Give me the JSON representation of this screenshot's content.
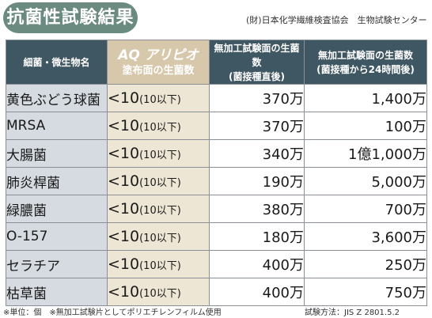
{
  "title": "抗菌性試験結果",
  "organization": "(財)日本化学繊維検査協会　生物試験センター",
  "table": {
    "headers": {
      "name": "細菌・微生物名",
      "aq_product": "AQ アリピオ",
      "aq_desc": "塗布面の生菌数",
      "ctrl_start_title": "無加工試験面の生菌数",
      "ctrl_start_sub": "(菌接種直後)",
      "ctrl_24h_title": "無加工試験面の生菌数",
      "ctrl_24h_sub": "(菌接種から24時間後)"
    },
    "rows": [
      {
        "name": "黄色ぶどう球菌",
        "aq_value": "<10",
        "aq_note": "(10以下)",
        "start": "370万",
        "after_24h": "1,400万"
      },
      {
        "name": "MRSA",
        "aq_value": "<10",
        "aq_note": "(10以下)",
        "start": "370万",
        "after_24h": "100万"
      },
      {
        "name": "大腸菌",
        "aq_value": "<10",
        "aq_note": "(10以下)",
        "start": "340万",
        "after_24h": "1億1,000万"
      },
      {
        "name": "肺炎桿菌",
        "aq_value": "<10",
        "aq_note": "(10以下)",
        "start": "190万",
        "after_24h": "5,000万"
      },
      {
        "name": "緑膿菌",
        "aq_value": "<10",
        "aq_note": "(10以下)",
        "start": "380万",
        "after_24h": "700万"
      },
      {
        "name": "O-157",
        "aq_value": "<10",
        "aq_note": "(10以下)",
        "start": "180万",
        "after_24h": "3,600万"
      },
      {
        "name": "セラチア",
        "aq_value": "<10",
        "aq_note": "(10以下)",
        "start": "400万",
        "after_24h": "250万"
      },
      {
        "name": "枯草菌",
        "aq_value": "<10",
        "aq_note": "(10以下)",
        "start": "400万",
        "after_24h": "750万"
      }
    ]
  },
  "footer": {
    "note": "※単位：個　※無加工試験片としてポリエチレンフィルム使用",
    "method": "試験方法：JIS Z 2801.5.2"
  },
  "colors": {
    "title_bg": "#6b8a80",
    "header_bg": "#3f5663",
    "aq_header_bg": "#d7c7ab",
    "name_col_bg": "#d5dbe0",
    "aq_col_bg": "#eee6d5"
  }
}
